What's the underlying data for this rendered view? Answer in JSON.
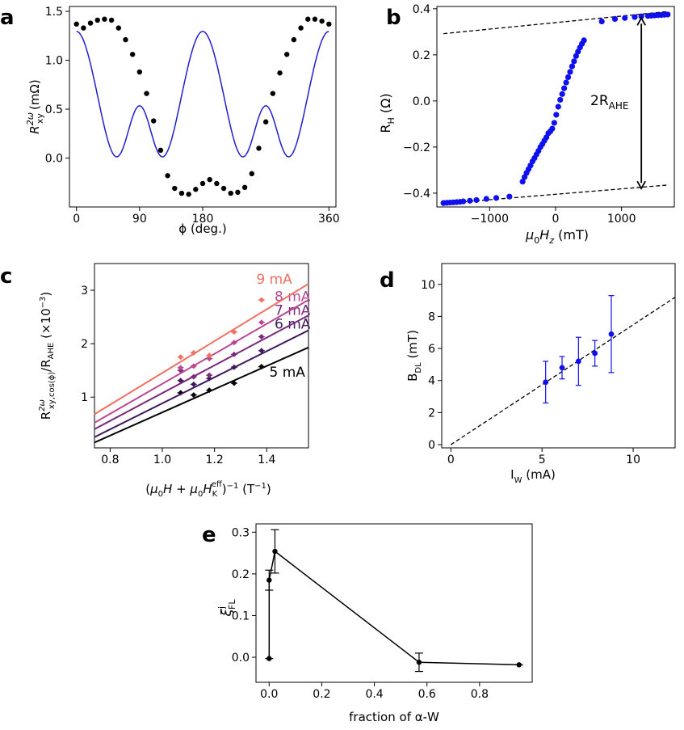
{
  "chart_data": [
    {
      "id": "a",
      "panel_label": "a",
      "type": "scatter",
      "xlabel": "ϕ (deg.)",
      "ylabel_main": "R",
      "ylabel_sup": "2ω",
      "ylabel_sub": "xy",
      "ylabel_unit": "(mΩ)",
      "xlim": [
        -10,
        370
      ],
      "ylim": [
        -0.5,
        1.55
      ],
      "xticks": [
        0,
        90,
        180,
        360
      ],
      "xtick_labels": [
        "0",
        "90",
        "180",
        "360"
      ],
      "yticks": [
        -0.0,
        0.5,
        1.0,
        1.5
      ],
      "ytick_labels": [
        "0.0",
        "0.5",
        "1.0",
        "1.5"
      ],
      "points": [
        [
          0,
          1.37
        ],
        [
          10,
          1.33
        ],
        [
          20,
          1.38
        ],
        [
          30,
          1.41
        ],
        [
          40,
          1.42
        ],
        [
          50,
          1.41
        ],
        [
          60,
          1.33
        ],
        [
          70,
          1.21
        ],
        [
          80,
          1.06
        ],
        [
          90,
          0.88
        ],
        [
          100,
          0.66
        ],
        [
          110,
          0.38
        ],
        [
          120,
          0.08
        ],
        [
          130,
          -0.18
        ],
        [
          140,
          -0.31
        ],
        [
          150,
          -0.36
        ],
        [
          160,
          -0.37
        ],
        [
          170,
          -0.32
        ],
        [
          180,
          -0.26
        ],
        [
          190,
          -0.22
        ],
        [
          200,
          -0.26
        ],
        [
          210,
          -0.31
        ],
        [
          220,
          -0.36
        ],
        [
          230,
          -0.35
        ],
        [
          240,
          -0.3
        ],
        [
          250,
          -0.16
        ],
        [
          260,
          0.1
        ],
        [
          270,
          0.37
        ],
        [
          280,
          0.66
        ],
        [
          290,
          0.87
        ],
        [
          300,
          1.06
        ],
        [
          310,
          1.21
        ],
        [
          320,
          1.33
        ],
        [
          330,
          1.42
        ],
        [
          340,
          1.42
        ],
        [
          350,
          1.4
        ],
        [
          360,
          1.37
        ]
      ],
      "fit": {
        "type": "model",
        "color": "#1f1fcf"
      },
      "marker_color": "#000000"
    },
    {
      "id": "b",
      "panel_label": "b",
      "type": "scatter",
      "xlabel_main": "μ",
      "xlabel_sub0": "0",
      "xlabel_mid": "H",
      "xlabel_subz": "z",
      "xlabel_unit": " (mT)",
      "ylabel_main": "R",
      "ylabel_sub": "H",
      "ylabel_unit": " (Ω)",
      "annotation_main": "2R",
      "annotation_sub": "AHE",
      "xlim": [
        -1800,
        1800
      ],
      "ylim": [
        -0.46,
        0.41
      ],
      "xticks": [
        -1000,
        0,
        1000
      ],
      "xtick_labels": [
        "−1000",
        "0",
        "1000"
      ],
      "yticks": [
        -0.4,
        -0.2,
        0.0,
        0.2,
        0.4
      ],
      "ytick_labels": [
        "−0.4",
        "−0.2",
        "0.0",
        "0.2",
        "0.4"
      ],
      "points": [
        [
          -1700,
          -0.443
        ],
        [
          -1650,
          -0.442
        ],
        [
          -1600,
          -0.441
        ],
        [
          -1550,
          -0.44
        ],
        [
          -1500,
          -0.439
        ],
        [
          -1450,
          -0.438
        ],
        [
          -1400,
          -0.436
        ],
        [
          -1300,
          -0.433
        ],
        [
          -1200,
          -0.43
        ],
        [
          -1050,
          -0.425
        ],
        [
          -900,
          -0.421
        ],
        [
          -700,
          -0.415
        ],
        [
          -500,
          -0.35
        ],
        [
          -470,
          -0.33
        ],
        [
          -440,
          -0.312
        ],
        [
          -410,
          -0.296
        ],
        [
          -380,
          -0.28
        ],
        [
          -350,
          -0.262
        ],
        [
          -320,
          -0.248
        ],
        [
          -290,
          -0.232
        ],
        [
          -260,
          -0.217
        ],
        [
          -230,
          -0.2
        ],
        [
          -200,
          -0.187
        ],
        [
          -170,
          -0.172
        ],
        [
          -140,
          -0.158
        ],
        [
          -110,
          -0.14
        ],
        [
          -80,
          -0.132
        ],
        [
          -50,
          -0.12
        ],
        [
          -20,
          -0.095
        ],
        [
          10,
          -0.06
        ],
        [
          40,
          -0.025
        ],
        [
          70,
          0.005
        ],
        [
          100,
          0.03
        ],
        [
          130,
          0.055
        ],
        [
          160,
          0.08
        ],
        [
          190,
          0.103
        ],
        [
          220,
          0.126
        ],
        [
          250,
          0.15
        ],
        [
          280,
          0.172
        ],
        [
          310,
          0.195
        ],
        [
          340,
          0.214
        ],
        [
          370,
          0.232
        ],
        [
          400,
          0.248
        ],
        [
          430,
          0.263
        ],
        [
          700,
          0.345
        ],
        [
          900,
          0.356
        ],
        [
          1050,
          0.36
        ],
        [
          1200,
          0.364
        ],
        [
          1300,
          0.367
        ],
        [
          1400,
          0.369
        ],
        [
          1450,
          0.37
        ],
        [
          1500,
          0.371
        ],
        [
          1550,
          0.372
        ],
        [
          1600,
          0.373
        ],
        [
          1650,
          0.374
        ],
        [
          1700,
          0.375
        ]
      ],
      "dashed_lines": [
        {
          "x": [
            -1700,
            1700
          ],
          "y": [
            0.292,
            0.388
          ]
        },
        {
          "x": [
            -1700,
            1700
          ],
          "y": [
            -0.445,
            -0.365
          ]
        }
      ],
      "arrow": {
        "x": 1300,
        "y_from": -0.38,
        "y_to": 0.36
      },
      "marker_color": "#1010ee"
    },
    {
      "id": "c",
      "panel_label": "c",
      "type": "scatter",
      "xlabel": "(μ₀H + μ₀Hᴷᵉᶠᶠ)⁻¹ (T⁻¹)",
      "ylabel": "R²ᵠxy,cos(ϕ)/R_AHE (×10⁻³)",
      "xlim": [
        0.74,
        1.56
      ],
      "ylim": [
        0.05,
        3.5
      ],
      "xticks": [
        0.8,
        1.0,
        1.2,
        1.4
      ],
      "xtick_labels": [
        "0.8",
        "1.0",
        "1.2",
        "1.4"
      ],
      "yticks": [
        1,
        2,
        3
      ],
      "ytick_labels": [
        "1",
        "2",
        "3"
      ],
      "series": [
        {
          "name": "5 mA",
          "color": "#000000",
          "label_pos": [
            1.41,
            1.38
          ],
          "line": [
            [
              0.74,
              0.15
            ],
            [
              1.56,
              1.93
            ]
          ],
          "points": [
            [
              1.07,
              1.08
            ],
            [
              1.12,
              1.04
            ],
            [
              1.18,
              1.13
            ],
            [
              1.275,
              1.26
            ],
            [
              1.38,
              1.57
            ]
          ]
        },
        {
          "name": "6 mA",
          "color": "#3d1a5e",
          "label_pos": [
            1.43,
            2.28
          ],
          "line": [
            [
              0.74,
              0.25
            ],
            [
              1.56,
              2.25
            ]
          ],
          "points": [
            [
              1.07,
              1.31
            ],
            [
              1.12,
              1.24
            ],
            [
              1.18,
              1.35
            ],
            [
              1.275,
              1.56
            ],
            [
              1.38,
              1.87
            ]
          ]
        },
        {
          "name": "7 mA",
          "color": "#7a2a7a",
          "label_pos": [
            1.43,
            2.54
          ],
          "line": [
            [
              0.74,
              0.4
            ],
            [
              1.56,
              2.53
            ]
          ],
          "points": [
            [
              1.07,
              1.5
            ],
            [
              1.12,
              1.38
            ],
            [
              1.18,
              1.41
            ],
            [
              1.275,
              1.8
            ],
            [
              1.38,
              2.13
            ]
          ]
        },
        {
          "name": "8 mA",
          "color": "#b84890",
          "label_pos": [
            1.43,
            2.8
          ],
          "line": [
            [
              0.74,
              0.52
            ],
            [
              1.56,
              2.82
            ]
          ],
          "points": [
            [
              1.07,
              1.55
            ],
            [
              1.12,
              1.58
            ],
            [
              1.18,
              1.72
            ],
            [
              1.275,
              2.02
            ],
            [
              1.38,
              2.4
            ]
          ]
        },
        {
          "name": "9 mA",
          "color": "#f07062",
          "label_pos": [
            1.36,
            3.12
          ],
          "line": [
            [
              0.74,
              0.68
            ],
            [
              1.56,
              3.12
            ]
          ],
          "points": [
            [
              1.07,
              1.75
            ],
            [
              1.12,
              1.83
            ],
            [
              1.18,
              1.78
            ],
            [
              1.275,
              2.22
            ],
            [
              1.38,
              2.82
            ]
          ]
        }
      ]
    },
    {
      "id": "d",
      "panel_label": "d",
      "type": "scatter",
      "xlabel_main": "I",
      "xlabel_sub": "W",
      "xlabel_unit": " (mA)",
      "ylabel_main": "B",
      "ylabel_sub": "DL",
      "ylabel_unit": " (mT)",
      "xlim": [
        -0.5,
        12.3
      ],
      "ylim": [
        -0.2,
        11.3
      ],
      "xticks": [
        0,
        5,
        10
      ],
      "xtick_labels": [
        "0",
        "5",
        "10"
      ],
      "yticks": [
        0,
        2,
        4,
        6,
        8,
        10
      ],
      "ytick_labels": [
        "0",
        "2",
        "4",
        "6",
        "8",
        "10"
      ],
      "points": [
        {
          "x": 5.2,
          "y": 3.9,
          "err": 1.3
        },
        {
          "x": 6.1,
          "y": 4.8,
          "err": 0.7
        },
        {
          "x": 7.0,
          "y": 5.2,
          "err": 1.5
        },
        {
          "x": 7.9,
          "y": 5.7,
          "err": 0.8
        },
        {
          "x": 8.8,
          "y": 6.9,
          "err": 2.4
        }
      ],
      "fit_line": {
        "x": [
          0,
          12.3
        ],
        "y": [
          0,
          9.2
        ]
      },
      "marker_color": "#1010ee"
    },
    {
      "id": "e",
      "panel_label": "e",
      "type": "line",
      "xlabel": "fraction of α-W",
      "ylabel_main": "ξ",
      "ylabel_sup": "j",
      "ylabel_sub": "FL",
      "xlim": [
        -0.05,
        1.0
      ],
      "ylim": [
        -0.06,
        0.32
      ],
      "xticks": [
        0.0,
        0.2,
        0.4,
        0.6,
        0.8
      ],
      "xtick_labels": [
        "0.0",
        "0.2",
        "0.4",
        "0.6",
        "0.8"
      ],
      "yticks": [
        0.0,
        0.1,
        0.2,
        0.3
      ],
      "ytick_labels": [
        "0.0",
        "0.1",
        "0.2",
        "0.3"
      ],
      "points": [
        {
          "x": 0.0,
          "y": -0.003,
          "err": 0.0
        },
        {
          "x": 0.0,
          "y": 0.185,
          "err": 0.024
        },
        {
          "x": 0.022,
          "y": 0.254,
          "err": 0.052
        },
        {
          "x": 0.57,
          "y": -0.012,
          "err": 0.022
        },
        {
          "x": 0.95,
          "y": -0.018,
          "err": 0.0
        }
      ],
      "marker_color": "#000000"
    }
  ]
}
